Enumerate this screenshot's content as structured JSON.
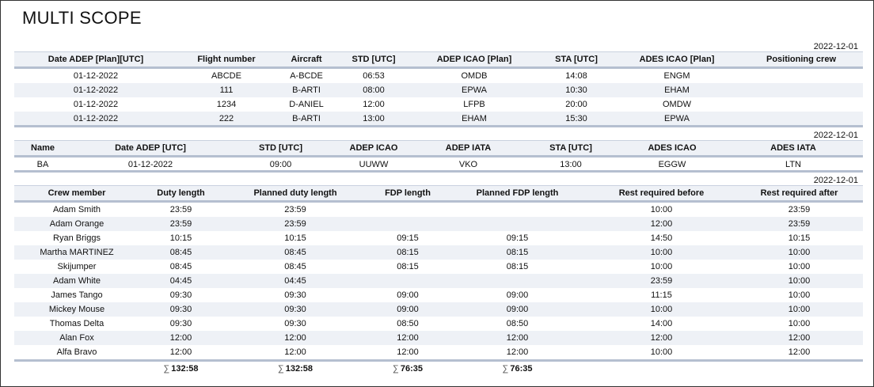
{
  "title": "MULTI SCOPE",
  "flights": {
    "date": "2022-12-01",
    "columns": [
      "Date ADEP [Plan][UTC]",
      "Flight number",
      "Aircraft",
      "STD [UTC]",
      "ADEP ICAO [Plan]",
      "STA [UTC]",
      "ADES ICAO [Plan]",
      "Positioning crew"
    ],
    "rows": [
      [
        "01-12-2022",
        "ABCDE",
        "A-BCDE",
        "06:53",
        "OMDB",
        "14:08",
        "ENGM",
        ""
      ],
      [
        "01-12-2022",
        "111",
        "B-ARTI",
        "08:00",
        "EPWA",
        "10:30",
        "EHAM",
        ""
      ],
      [
        "01-12-2022",
        "1234",
        "D-ANIEL",
        "12:00",
        "LFPB",
        "20:00",
        "OMDW",
        ""
      ],
      [
        "01-12-2022",
        "222",
        "B-ARTI",
        "13:00",
        "EHAM",
        "15:30",
        "EPWA",
        ""
      ]
    ]
  },
  "positioning": {
    "date": "2022-12-01",
    "columns": [
      "Name",
      "Date ADEP [UTC]",
      "STD [UTC]",
      "ADEP ICAO",
      "ADEP IATA",
      "STA [UTC]",
      "ADES ICAO",
      "ADES IATA"
    ],
    "rows": [
      [
        "BA",
        "01-12-2022",
        "09:00",
        "UUWW",
        "VKO",
        "13:00",
        "EGGW",
        "LTN"
      ]
    ]
  },
  "crew": {
    "date": "2022-12-01",
    "columns": [
      "Crew member",
      "Duty length",
      "Planned duty length",
      "FDP length",
      "Planned FDP length",
      "Rest required before",
      "Rest required after"
    ],
    "rows": [
      [
        "Adam Smith",
        "23:59",
        "23:59",
        "",
        "",
        "10:00",
        "23:59"
      ],
      [
        "Adam Orange",
        "23:59",
        "23:59",
        "",
        "",
        "12:00",
        "23:59"
      ],
      [
        "Ryan Briggs",
        "10:15",
        "10:15",
        "09:15",
        "09:15",
        "14:50",
        "10:15"
      ],
      [
        "Martha MARTINEZ",
        "08:45",
        "08:45",
        "08:15",
        "08:15",
        "10:00",
        "10:00"
      ],
      [
        "Skijumper",
        "08:45",
        "08:45",
        "08:15",
        "08:15",
        "10:00",
        "10:00"
      ],
      [
        "Adam White",
        "04:45",
        "04:45",
        "",
        "",
        "23:59",
        "10:00"
      ],
      [
        "James Tango",
        "09:30",
        "09:30",
        "09:00",
        "09:00",
        "11:15",
        "10:00"
      ],
      [
        "Mickey Mouse",
        "09:30",
        "09:30",
        "09:00",
        "09:00",
        "10:00",
        "10:00"
      ],
      [
        "Thomas Delta",
        "09:30",
        "09:30",
        "08:50",
        "08:50",
        "14:00",
        "10:00"
      ],
      [
        "Alan Fox",
        "12:00",
        "12:00",
        "12:00",
        "12:00",
        "12:00",
        "12:00"
      ],
      [
        "Alfa Bravo",
        "12:00",
        "12:00",
        "12:00",
        "12:00",
        "10:00",
        "12:00"
      ]
    ],
    "totals": [
      "",
      "132:58",
      "132:58",
      "76:35",
      "76:35",
      "",
      ""
    ],
    "sum_symbol": "∑"
  },
  "colors": {
    "header_bg": "#eef1f6",
    "rule": "#b5bfd0",
    "stripe": "#eef1f6"
  }
}
